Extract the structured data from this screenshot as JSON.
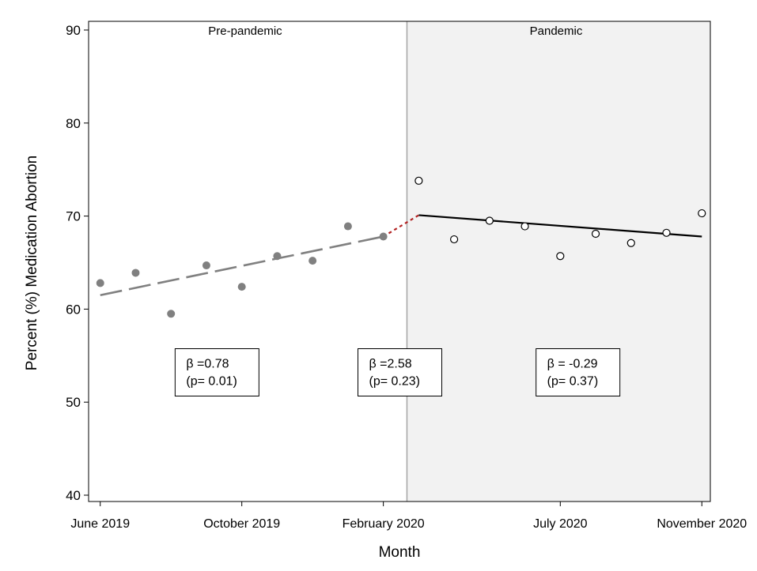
{
  "chart_data": {
    "type": "scatter",
    "title": "",
    "xlabel": "Month",
    "ylabel": "Percent (%) Medication Abortion",
    "ylim": [
      40,
      90
    ],
    "yticks": [
      40,
      50,
      60,
      70,
      80,
      90
    ],
    "xlim": [
      "2019-05",
      "2020-12"
    ],
    "xticks": [
      {
        "month": "2019-06",
        "label": "June 2019"
      },
      {
        "month": "2019-10",
        "label": "October 2019"
      },
      {
        "month": "2020-02",
        "label": "February 2020"
      },
      {
        "month": "2020-07",
        "label": "July 2020"
      },
      {
        "month": "2020-11",
        "label": "November 2020"
      }
    ],
    "grid": false,
    "periods": [
      {
        "name": "Pre-pandemic",
        "from": "2019-06",
        "to": "2020-02",
        "shaded": false
      },
      {
        "name": "Pandemic",
        "from": "2020-03",
        "to": "2020-12",
        "shaded": true,
        "shade_color": "#f2f2f2"
      }
    ],
    "series": [
      {
        "style": "filled",
        "color": "#808080",
        "points": [
          {
            "x": "2019-06",
            "y": 62.8
          },
          {
            "x": "2019-07",
            "y": 63.9
          },
          {
            "x": "2019-08",
            "y": 59.5
          },
          {
            "x": "2019-09",
            "y": 64.7
          },
          {
            "x": "2019-10",
            "y": 62.4
          },
          {
            "x": "2019-11",
            "y": 65.7
          },
          {
            "x": "2019-12",
            "y": 65.2
          },
          {
            "x": "2020-01",
            "y": 68.9
          },
          {
            "x": "2020-02",
            "y": 67.8
          }
        ]
      },
      {
        "style": "open",
        "color": "#000000",
        "points": [
          {
            "x": "2020-03",
            "y": 73.8
          },
          {
            "x": "2020-04",
            "y": 67.5
          },
          {
            "x": "2020-05",
            "y": 69.5
          },
          {
            "x": "2020-06",
            "y": 68.9
          },
          {
            "x": "2020-07",
            "y": 65.7
          },
          {
            "x": "2020-08",
            "y": 68.1
          },
          {
            "x": "2020-09",
            "y": 67.1
          },
          {
            "x": "2020-10",
            "y": 68.2
          },
          {
            "x": "2020-11",
            "y": 70.3
          }
        ]
      }
    ],
    "trend_lines": [
      {
        "style": "dashed",
        "color": "#808080",
        "from": {
          "x": "2019-06",
          "y": 61.5
        },
        "to": {
          "x": "2020-02",
          "y": 67.8
        }
      },
      {
        "style": "dotted",
        "color": "#b22222",
        "from": {
          "x": "2020-02",
          "y": 67.8
        },
        "to": {
          "x": "2020-03",
          "y": 70.1
        }
      },
      {
        "style": "solid",
        "color": "#000000",
        "from": {
          "x": "2020-03",
          "y": 70.1
        },
        "to": {
          "x": "2020-11",
          "y": 67.8
        }
      }
    ],
    "annotations": [
      {
        "line1": "β =0.78",
        "line2": "(p= 0.01)",
        "x": "2019-09-10",
        "y": 53.2
      },
      {
        "line1": "β =2.58",
        "line2": "(p= 0.23)",
        "x": "2020-02-15",
        "y": 53.2
      },
      {
        "line1": "β = -0.29",
        "line2": "(p= 0.37)",
        "x": "2020-07-16",
        "y": 53.2
      }
    ],
    "divider_month": "2020-02-21"
  }
}
